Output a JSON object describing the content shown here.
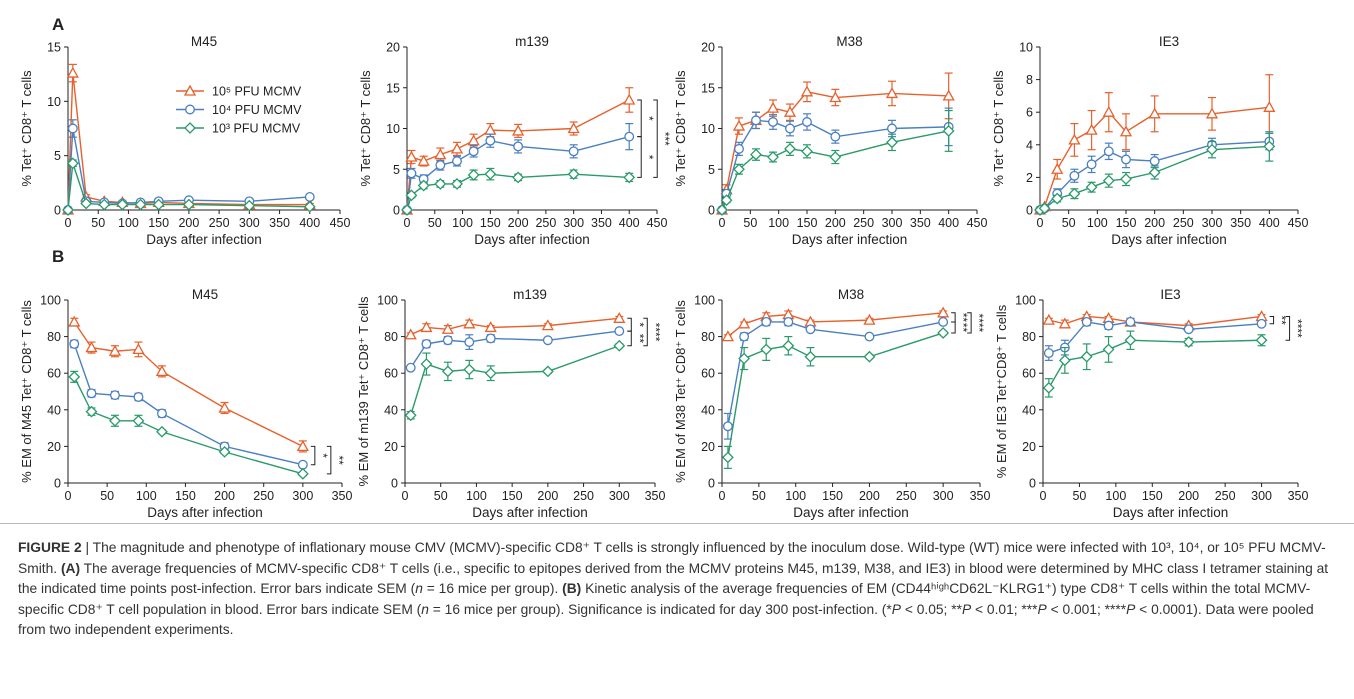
{
  "chart_data": [
    {
      "type": "line",
      "panel": "A",
      "title": "M45",
      "xlabel": "Days after infection",
      "ylabel": "% Tet⁺ CD8⁺ T cells",
      "x": [
        0,
        8,
        30,
        60,
        90,
        120,
        150,
        200,
        300,
        400
      ],
      "series": [
        {
          "name": "10⁵ PFU MCMV",
          "color": "#e8602c",
          "marker": "triangle",
          "values": [
            0,
            12.6,
            1.2,
            0.8,
            0.7,
            0.6,
            0.7,
            0.6,
            0.5,
            0.5
          ],
          "errors": [
            0,
            0.8,
            0.2,
            0.1,
            0.1,
            0.1,
            0.1,
            0.1,
            0.1,
            0.1
          ]
        },
        {
          "name": "10⁴ PFU MCMV",
          "color": "#4a7fc1",
          "marker": "circle",
          "values": [
            0,
            7.5,
            0.8,
            0.7,
            0.6,
            0.7,
            0.8,
            0.9,
            0.8,
            1.2
          ],
          "errors": [
            0,
            0.8,
            0.1,
            0.1,
            0.1,
            0.1,
            0.1,
            0.1,
            0.1,
            0.2
          ]
        },
        {
          "name": "10³ PFU MCMV",
          "color": "#2a9a6a",
          "marker": "diamond",
          "values": [
            0,
            4.3,
            0.6,
            0.5,
            0.5,
            0.5,
            0.5,
            0.5,
            0.4,
            0.3
          ],
          "errors": [
            0,
            0.3,
            0.1,
            0.1,
            0.1,
            0.1,
            0.1,
            0.1,
            0.1,
            0.1
          ]
        }
      ],
      "xlim": [
        0,
        450
      ],
      "ylim": [
        0,
        15
      ],
      "xticks": [
        0,
        50,
        100,
        150,
        200,
        250,
        300,
        350,
        400,
        450
      ],
      "yticks": [
        0,
        5,
        10,
        15
      ],
      "legend": true
    },
    {
      "type": "line",
      "title": "m139",
      "xlabel": "Days after infection",
      "ylabel": "% Tet⁺ CD8⁺ T cells",
      "x": [
        0,
        8,
        30,
        60,
        90,
        120,
        150,
        200,
        300,
        400
      ],
      "series": [
        {
          "color": "#e8602c",
          "marker": "triangle",
          "values": [
            0,
            6.5,
            6,
            6.8,
            7.5,
            8.5,
            9.8,
            9.7,
            10,
            13.5
          ],
          "errors": [
            0,
            0.8,
            0.6,
            0.8,
            0.8,
            0.8,
            0.8,
            0.8,
            0.8,
            1.5
          ]
        },
        {
          "color": "#4a7fc1",
          "marker": "circle",
          "values": [
            0,
            4.5,
            3.8,
            5.5,
            6,
            7.2,
            8.5,
            7.8,
            7.2,
            9
          ],
          "errors": [
            0,
            0.6,
            0.5,
            0.6,
            0.6,
            0.7,
            0.8,
            0.8,
            0.8,
            1.6
          ]
        },
        {
          "color": "#2a9a6a",
          "marker": "diamond",
          "values": [
            0,
            1.8,
            3,
            3.2,
            3.2,
            4.3,
            4.4,
            4,
            4.4,
            4
          ],
          "errors": [
            0,
            0.3,
            0.4,
            0.4,
            0.4,
            0.6,
            0.7,
            0.4,
            0.5,
            0.5
          ]
        }
      ],
      "xlim": [
        0,
        450
      ],
      "ylim": [
        0,
        20
      ],
      "xticks": [
        0,
        50,
        100,
        150,
        200,
        250,
        300,
        350,
        400,
        450
      ],
      "yticks": [
        0,
        5,
        10,
        15,
        20
      ],
      "significance": [
        {
          "from": 0,
          "to": 1,
          "label": "*"
        },
        {
          "from": 1,
          "to": 2,
          "label": "*"
        },
        {
          "from": 0,
          "to": 2,
          "label": "***"
        }
      ]
    },
    {
      "type": "line",
      "title": "M38",
      "xlabel": "Days after infection",
      "ylabel": "% Tet⁺ CD8⁺ T cells",
      "x": [
        0,
        8,
        30,
        60,
        90,
        120,
        150,
        200,
        300,
        400
      ],
      "series": [
        {
          "color": "#e8602c",
          "marker": "triangle",
          "values": [
            0,
            2.5,
            10.3,
            11,
            12.5,
            12,
            14.5,
            13.8,
            14.3,
            14
          ],
          "errors": [
            0,
            0.6,
            1,
            1,
            1,
            1,
            1.2,
            1,
            1.5,
            2.8
          ]
        },
        {
          "color": "#4a7fc1",
          "marker": "circle",
          "values": [
            0,
            2,
            7.5,
            11,
            10.8,
            10,
            10.8,
            9,
            10,
            10.2
          ],
          "errors": [
            0,
            0.5,
            0.8,
            1,
            0.9,
            0.9,
            1,
            0.8,
            1,
            2.3
          ]
        },
        {
          "color": "#2a9a6a",
          "marker": "diamond",
          "values": [
            0,
            1.2,
            5,
            6.8,
            6.5,
            7.5,
            7.2,
            6.5,
            8.3,
            9.7
          ],
          "errors": [
            0,
            0.3,
            0.6,
            0.7,
            0.6,
            0.8,
            0.8,
            0.8,
            1,
            2.5
          ]
        }
      ],
      "xlim": [
        0,
        450
      ],
      "ylim": [
        0,
        20
      ],
      "xticks": [
        0,
        50,
        100,
        150,
        200,
        250,
        300,
        350,
        400,
        450
      ],
      "yticks": [
        0,
        5,
        10,
        15,
        20
      ]
    },
    {
      "type": "line",
      "title": "IE3",
      "xlabel": "Days after infection",
      "ylabel": "% Tet⁺ CD8⁺ T cells",
      "x": [
        0,
        8,
        30,
        60,
        90,
        120,
        150,
        200,
        300,
        400
      ],
      "series": [
        {
          "color": "#e8602c",
          "marker": "triangle",
          "values": [
            0,
            0.2,
            2.5,
            4.3,
            4.9,
            6,
            4.8,
            5.9,
            5.9,
            6.3
          ],
          "errors": [
            0,
            0.1,
            0.6,
            1,
            1.2,
            1.2,
            1.1,
            1.1,
            1,
            2
          ]
        },
        {
          "color": "#4a7fc1",
          "marker": "circle",
          "values": [
            0,
            0.1,
            1,
            2.1,
            2.8,
            3.6,
            3.1,
            3,
            4,
            4.2
          ],
          "errors": [
            0,
            0.1,
            0.3,
            0.4,
            0.5,
            0.5,
            0.5,
            0.4,
            0.4,
            0.5
          ]
        },
        {
          "color": "#2a9a6a",
          "marker": "diamond",
          "values": [
            0,
            0.1,
            0.7,
            1,
            1.4,
            1.8,
            1.9,
            2.3,
            3.7,
            3.9
          ],
          "errors": [
            0,
            0.1,
            0.2,
            0.3,
            0.3,
            0.4,
            0.4,
            0.4,
            0.5,
            0.9
          ]
        }
      ],
      "xlim": [
        0,
        450
      ],
      "ylim": [
        0,
        10
      ],
      "xticks": [
        0,
        50,
        100,
        150,
        200,
        250,
        300,
        350,
        400,
        450
      ],
      "yticks": [
        0,
        2,
        4,
        6,
        8,
        10
      ]
    },
    {
      "type": "line",
      "panel": "B",
      "title": "M45",
      "xlabel": "Days after infection",
      "ylabel": "% EM of M45 Tet⁺ CD8⁺ T cells",
      "x": [
        8,
        30,
        60,
        90,
        120,
        200,
        300
      ],
      "series": [
        {
          "color": "#e8602c",
          "marker": "triangle",
          "values": [
            88,
            74,
            72,
            73,
            61,
            41,
            20
          ],
          "errors": [
            2,
            3,
            3,
            4,
            3,
            3,
            3
          ]
        },
        {
          "color": "#4a7fc1",
          "marker": "circle",
          "values": [
            76,
            49,
            48,
            47,
            38,
            20,
            10
          ],
          "errors": [
            2,
            2,
            2,
            2,
            2,
            2,
            1
          ]
        },
        {
          "color": "#2a9a6a",
          "marker": "diamond",
          "values": [
            58,
            39,
            34,
            34,
            28,
            17,
            5
          ],
          "errors": [
            3,
            2,
            3,
            3,
            1,
            1,
            1
          ]
        }
      ],
      "xlim": [
        0,
        350
      ],
      "ylim": [
        0,
        100
      ],
      "xticks": [
        0,
        50,
        100,
        150,
        200,
        250,
        300,
        350
      ],
      "yticks": [
        0,
        20,
        40,
        60,
        80,
        100
      ],
      "significance": [
        {
          "from": 0,
          "to": 1,
          "label": "*"
        },
        {
          "from": 0,
          "to": 2,
          "label": "**"
        }
      ]
    },
    {
      "type": "line",
      "title": "m139",
      "xlabel": "Days after infection",
      "ylabel": "% EM of m139 Tet⁺ CD8⁺ T cells",
      "x": [
        8,
        30,
        60,
        90,
        120,
        200,
        300
      ],
      "series": [
        {
          "color": "#e8602c",
          "marker": "triangle",
          "values": [
            81,
            85,
            84,
            87,
            85,
            86,
            90
          ],
          "errors": [
            1,
            2,
            2,
            2,
            1,
            1,
            1
          ]
        },
        {
          "color": "#4a7fc1",
          "marker": "circle",
          "values": [
            63,
            76,
            78,
            77,
            79,
            78,
            83
          ],
          "errors": [
            1,
            2,
            2,
            4,
            2,
            1,
            1
          ]
        },
        {
          "color": "#2a9a6a",
          "marker": "diamond",
          "values": [
            37,
            65,
            61,
            62,
            60,
            61,
            75
          ],
          "errors": [
            2,
            6,
            5,
            5,
            4,
            1,
            1
          ]
        }
      ],
      "xlim": [
        0,
        350
      ],
      "ylim": [
        0,
        100
      ],
      "xticks": [
        0,
        50,
        100,
        150,
        200,
        250,
        300,
        350
      ],
      "yticks": [
        0,
        20,
        40,
        60,
        80,
        100
      ],
      "significance": [
        {
          "from": 0,
          "to": 1,
          "label": "*"
        },
        {
          "from": 1,
          "to": 2,
          "label": "**"
        },
        {
          "from": 0,
          "to": 2,
          "label": "****"
        }
      ]
    },
    {
      "type": "line",
      "title": "M38",
      "xlabel": "Days after infection",
      "ylabel": "% EM of M38 Tet⁺ CD8⁺ T cells",
      "x": [
        8,
        30,
        60,
        90,
        120,
        200,
        300
      ],
      "series": [
        {
          "color": "#e8602c",
          "marker": "triangle",
          "values": [
            80,
            87,
            91,
            92,
            88,
            89,
            93
          ],
          "errors": [
            1,
            1,
            2,
            2,
            1,
            1,
            1
          ]
        },
        {
          "color": "#4a7fc1",
          "marker": "circle",
          "values": [
            31,
            80,
            88,
            88,
            84,
            80,
            88
          ],
          "errors": [
            7,
            2,
            2,
            2,
            1,
            1,
            1
          ]
        },
        {
          "color": "#2a9a6a",
          "marker": "diamond",
          "values": [
            14,
            68,
            73,
            75,
            69,
            69,
            82
          ],
          "errors": [
            6,
            6,
            6,
            5,
            5,
            1,
            1
          ]
        }
      ],
      "xlim": [
        0,
        350
      ],
      "ylim": [
        0,
        100
      ],
      "xticks": [
        0,
        50,
        100,
        150,
        200,
        250,
        300,
        350
      ],
      "yticks": [
        0,
        20,
        40,
        60,
        80,
        100
      ],
      "significance": [
        {
          "from": 0,
          "to": 1,
          "label": "**"
        },
        {
          "from": 1,
          "to": 2,
          "label": "**"
        },
        {
          "from": 0,
          "to": 2,
          "label": "****"
        }
      ]
    },
    {
      "type": "line",
      "title": "IE3",
      "xlabel": "Days after infection",
      "ylabel": "% EM of IE3 Tet⁺CD8⁺ T cells",
      "x": [
        8,
        30,
        60,
        90,
        120,
        200,
        300
      ],
      "series": [
        {
          "color": "#e8602c",
          "marker": "triangle",
          "values": [
            89,
            87,
            91,
            90,
            88,
            86,
            91
          ],
          "errors": [
            1,
            2,
            1,
            1,
            1,
            1,
            1
          ]
        },
        {
          "color": "#4a7fc1",
          "marker": "circle",
          "values": [
            71,
            74,
            88,
            86,
            88,
            84,
            87
          ],
          "errors": [
            4,
            4,
            2,
            2,
            2,
            1,
            1
          ]
        },
        {
          "color": "#2a9a6a",
          "marker": "diamond",
          "values": [
            52,
            67,
            69,
            73,
            78,
            77,
            78
          ],
          "errors": [
            5,
            7,
            7,
            7,
            5,
            2,
            3
          ]
        }
      ],
      "xlim": [
        0,
        350
      ],
      "ylim": [
        0,
        100
      ],
      "xticks": [
        0,
        50,
        100,
        150,
        200,
        250,
        300,
        350
      ],
      "yticks": [
        0,
        20,
        40,
        60,
        80,
        100
      ],
      "significance": [
        {
          "from": 0,
          "to": 1,
          "label": "**"
        },
        {
          "from": 0,
          "to": 2,
          "label": "****"
        }
      ]
    }
  ],
  "caption": [
    {
      "text": "FIGURE 2",
      "style": "bold"
    },
    {
      "text": " | The magnitude and phenotype of inflationary mouse CMV (MCMV)-specific CD8⁺ T cells is strongly influenced by the inoculum dose. Wild-type (WT) mice were infected with 10³, 10⁴, or 10⁵ PFU MCMV-Smith. ",
      "style": "normal"
    },
    {
      "text": "(A)",
      "style": "bold"
    },
    {
      "text": " The average frequencies of MCMV-specific CD8⁺ T cells (i.e., specific to epitopes derived from the MCMV proteins M45, m139, M38, and IE3) in blood were determined by MHC class I tetramer staining at the indicated time points post-infection. Error bars indicate SEM (",
      "style": "normal"
    },
    {
      "text": "n",
      "style": "italic"
    },
    {
      "text": " = 16 mice per group). ",
      "style": "normal"
    },
    {
      "text": "(B)",
      "style": "bold"
    },
    {
      "text": " Kinetic analysis of the average frequencies of EM (CD44ʰⁱᵍʰCD62L⁻KLRG1⁺) type CD8⁺ T cells within the total MCMV-specific CD8⁺ T cell population in blood. Error bars indicate SEM (",
      "style": "normal"
    },
    {
      "text": "n",
      "style": "italic"
    },
    {
      "text": " = 16 mice per group). Significance is indicated for day 300 post-infection. (*",
      "style": "normal"
    },
    {
      "text": "P",
      "style": "italic"
    },
    {
      "text": " < 0.05; **",
      "style": "normal"
    },
    {
      "text": "P",
      "style": "italic"
    },
    {
      "text": " < 0.01; ***",
      "style": "normal"
    },
    {
      "text": "P",
      "style": "italic"
    },
    {
      "text": " < 0.001; ****",
      "style": "normal"
    },
    {
      "text": "P",
      "style": "italic"
    },
    {
      "text": " < 0.0001). Data were pooled from two independent experiments.",
      "style": "normal"
    }
  ]
}
